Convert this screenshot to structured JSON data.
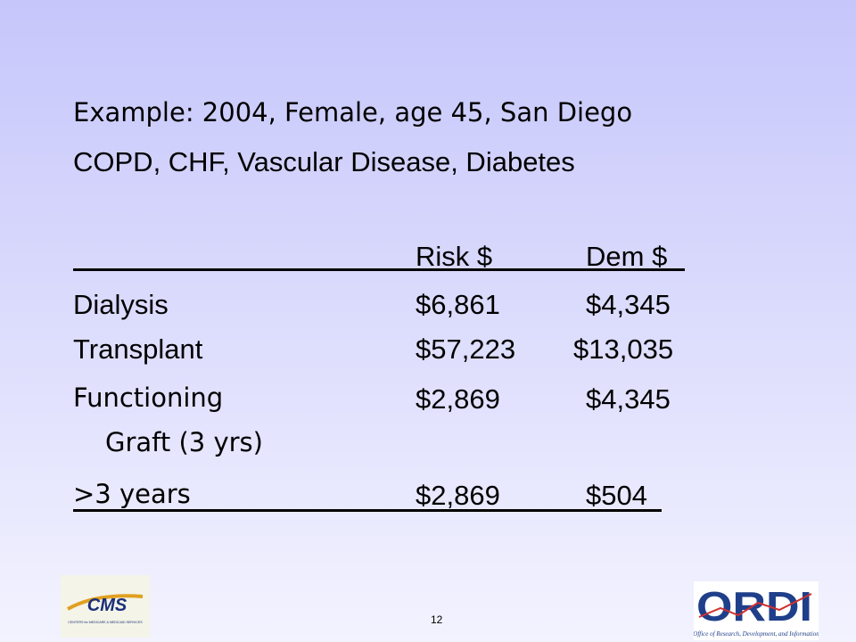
{
  "title": [
    "Example: 2004, Female, age 45, San Diego",
    "COPD, CHF, Vascular Disease, Diabetes"
  ],
  "table": {
    "header": [
      "Risk $",
      "Dem $"
    ],
    "rows": [
      {
        "label": "Dialysis",
        "risk": "$6,861",
        "dem": "$4,345"
      },
      {
        "label": "Transplant",
        "risk": "$57,223",
        "dem": "$13,035"
      },
      {
        "label": "Functioning",
        "sublabel": "Graft (3 yrs)",
        "risk": "$2,869",
        "dem": "$4,345"
      },
      {
        "label": ">3 years",
        "risk": "$2,869",
        "dem": "$504"
      }
    ]
  },
  "page_number": "12",
  "logos": {
    "left": {
      "name": "CMS",
      "caption": "CENTERS for MEDICARE & MEDICAID SERVICES"
    },
    "right": {
      "name": "ORDI",
      "caption": "Office of Research, Development, and Information"
    }
  }
}
